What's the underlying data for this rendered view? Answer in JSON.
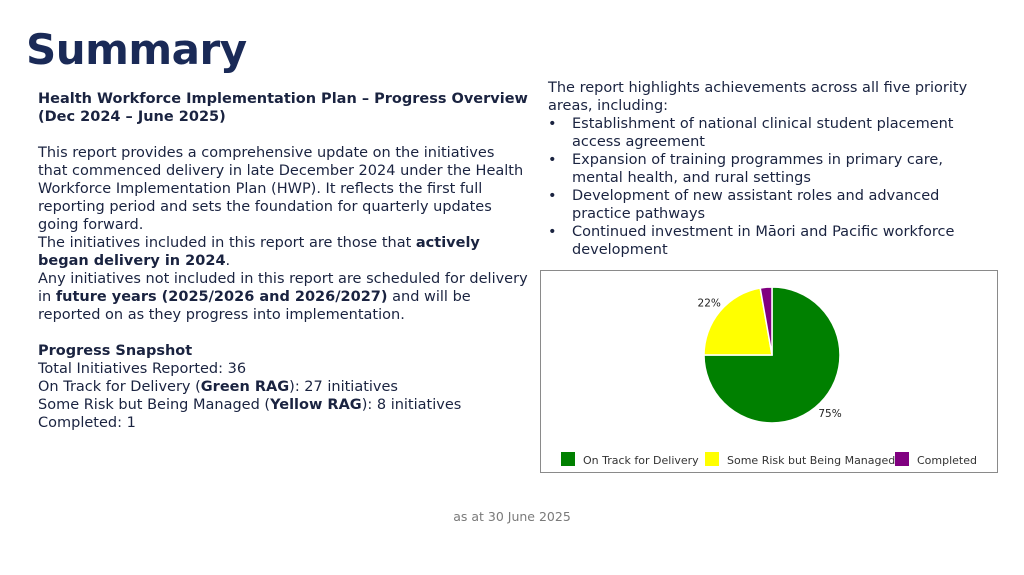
{
  "title": "Summary",
  "left": {
    "heading": "Health Workforce Implementation Plan – Progress Overview (Dec 2024 – June 2025)",
    "para1": "This report provides a comprehensive update on the initiatives that commenced delivery in late December 2024 under the Health Workforce Implementation Plan (HWP). It reflects the first full reporting period and sets the foundation for quarterly updates going forward.",
    "para2_pre": "The initiatives included in this report are those that ",
    "para2_bold": "actively began delivery in 2024",
    "para2_post": ".",
    "para3_pre": "Any initiatives not included in this report are scheduled for delivery in ",
    "para3_bold": "future years (2025/2026 and 2026/2027)",
    "para3_post": " and will be reported on as they progress into implementation.",
    "snapshot_heading": "Progress Snapshot",
    "total": "Total Initiatives Reported: 36",
    "on_track_pre": "On Track for Delivery (",
    "on_track_bold": "Green RAG",
    "on_track_post": "): 27 initiatives",
    "risk_pre": "Some Risk but Being Managed (",
    "risk_bold": "Yellow RAG",
    "risk_post": "): 8 initiatives",
    "completed": "Completed: 1"
  },
  "right": {
    "intro": "The report highlights achievements across all five priority areas, including:",
    "bullets": [
      "Establishment of national clinical student placement access agreement",
      "Expansion of training programmes in primary care, mental health, and rural settings",
      "Development of new assistant roles and advanced practice pathways",
      "Continued investment in Māori and Pacific workforce development"
    ]
  },
  "chart_data": {
    "type": "pie",
    "categories": [
      "On Track for Delivery",
      "Some Risk but Being Managed",
      "Completed"
    ],
    "values": [
      27,
      8,
      1
    ],
    "colors": [
      "#008000",
      "#ffff00",
      "#800080"
    ],
    "data_labels": [
      "75%",
      "22%",
      ""
    ],
    "legend_position": "bottom"
  },
  "footer": "as at 30 June 2025"
}
